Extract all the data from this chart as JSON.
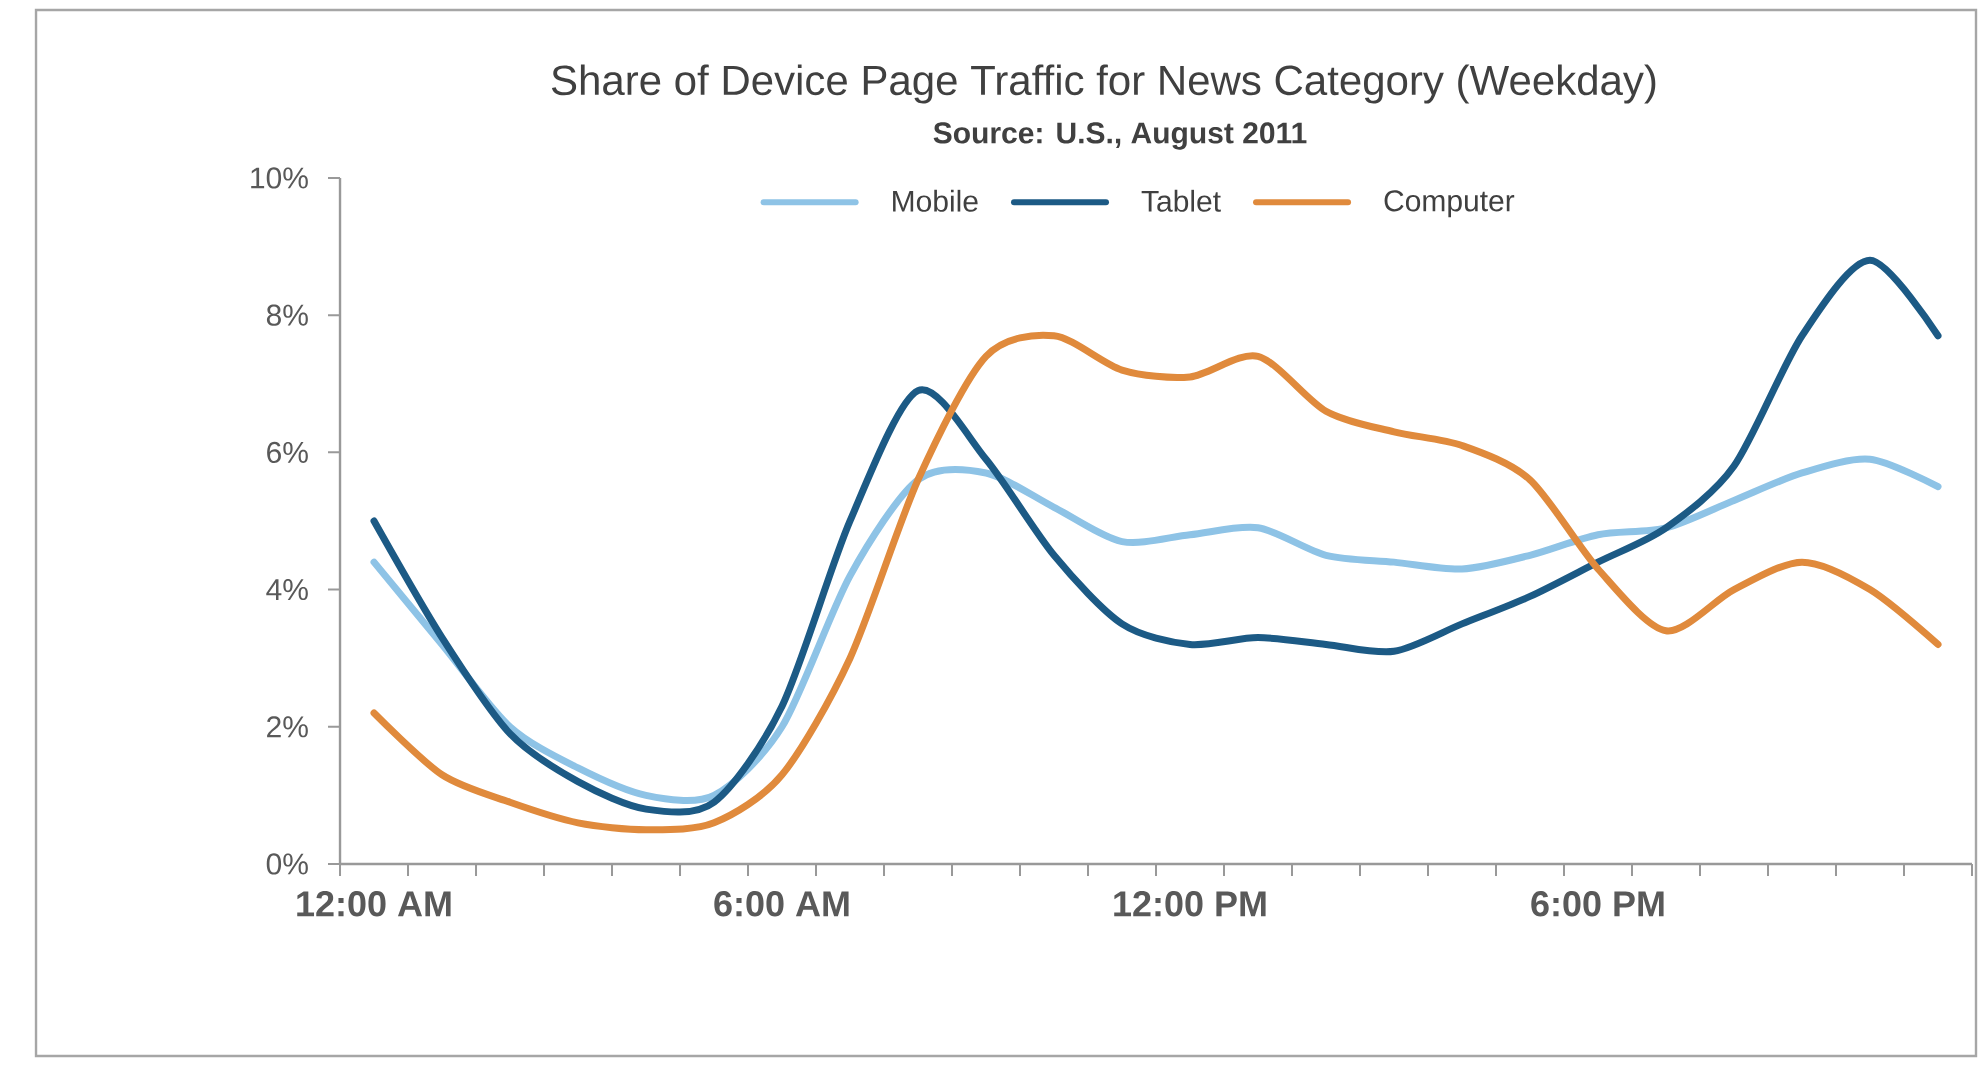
{
  "chart_data": {
    "type": "line",
    "title": "Share of Device Page Traffic for News Category (Weekday)",
    "subtitle": "Source: U.S., August 2011",
    "categories": [
      "12:00 AM",
      null,
      null,
      null,
      null,
      null,
      "6:00 AM",
      null,
      null,
      null,
      null,
      null,
      "12:00 PM",
      null,
      null,
      null,
      null,
      null,
      "6:00 PM",
      null,
      null,
      null,
      null,
      null
    ],
    "ylim": [
      0,
      10
    ],
    "yticks": [
      {
        "value": 0,
        "label": "0%"
      },
      {
        "value": 2,
        "label": "2%"
      },
      {
        "value": 4,
        "label": "4%"
      },
      {
        "value": 6,
        "label": "6%"
      },
      {
        "value": 8,
        "label": "8%"
      },
      {
        "value": 10,
        "label": "10%"
      }
    ],
    "legend": "top",
    "series": [
      {
        "name": "Mobile",
        "color": "#8ec3e6",
        "values": [
          4.4,
          3.2,
          2.0,
          1.4,
          1.0,
          1.0,
          2.0,
          4.2,
          5.6,
          5.7,
          5.2,
          4.7,
          4.8,
          4.9,
          4.5,
          4.4,
          4.3,
          4.5,
          4.8,
          4.9,
          5.3,
          5.7,
          5.9,
          5.5
        ]
      },
      {
        "name": "Tablet",
        "color": "#1c5a85",
        "values": [
          5.0,
          3.3,
          1.9,
          1.2,
          0.8,
          0.9,
          2.3,
          5.0,
          6.9,
          5.9,
          4.5,
          3.5,
          3.2,
          3.3,
          3.2,
          3.1,
          3.5,
          3.9,
          4.4,
          4.9,
          5.8,
          7.7,
          8.8,
          7.7
        ]
      },
      {
        "name": "Computer",
        "color": "#e08a3c",
        "values": [
          2.2,
          1.3,
          0.9,
          0.6,
          0.5,
          0.6,
          1.3,
          3.0,
          5.6,
          7.4,
          7.7,
          7.2,
          7.1,
          7.4,
          6.6,
          6.3,
          6.1,
          5.6,
          4.3,
          3.4,
          4.0,
          4.4,
          4.0,
          3.2
        ]
      }
    ]
  }
}
